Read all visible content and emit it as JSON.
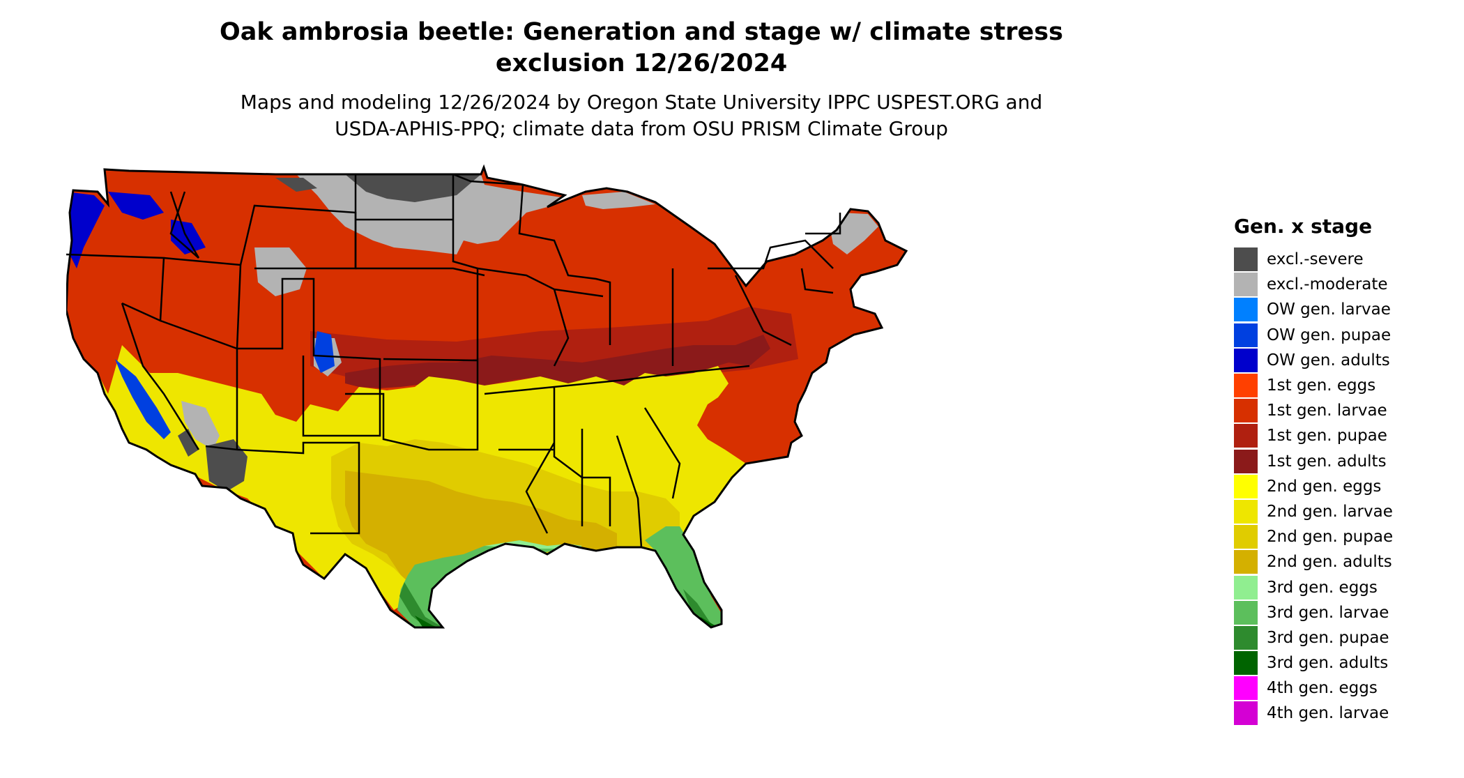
{
  "title_lines": [
    "Oak ambrosia beetle: Generation and stage w/ climate stress",
    "exclusion 12/26/2024"
  ],
  "subtitle_lines": [
    "Maps and modeling 12/26/2024 by Oregon State University IPPC USPEST.ORG and",
    "USDA-APHIS-PPQ; climate data from OSU PRISM Climate Group"
  ],
  "legend": {
    "title": "Gen. x stage",
    "items": [
      {
        "label": "excl.-severe",
        "color": "#4d4d4d"
      },
      {
        "label": "excl.-moderate",
        "color": "#b3b3b3"
      },
      {
        "label": "OW gen. larvae",
        "color": "#0080ff"
      },
      {
        "label": "OW gen. pupae",
        "color": "#0040e0"
      },
      {
        "label": "OW gen. adults",
        "color": "#0000cc"
      },
      {
        "label": "1st gen. eggs",
        "color": "#ff4000"
      },
      {
        "label": "1st gen. larvae",
        "color": "#d73000"
      },
      {
        "label": "1st gen. pupae",
        "color": "#b02010"
      },
      {
        "label": "1st gen. adults",
        "color": "#8b1a1a"
      },
      {
        "label": "2nd gen. eggs",
        "color": "#ffff00"
      },
      {
        "label": "2nd gen. larvae",
        "color": "#eee600"
      },
      {
        "label": "2nd gen. pupae",
        "color": "#e0cc00"
      },
      {
        "label": "2nd gen. adults",
        "color": "#d4b000"
      },
      {
        "label": "3rd gen. eggs",
        "color": "#90ee90"
      },
      {
        "label": "3rd gen. larvae",
        "color": "#5cbf5c"
      },
      {
        "label": "3rd gen. pupae",
        "color": "#2e8b2e"
      },
      {
        "label": "3rd gen. adults",
        "color": "#006400"
      },
      {
        "label": "4th gen. eggs",
        "color": "#ff00ff"
      },
      {
        "label": "4th gen. larvae",
        "color": "#d400d4"
      }
    ]
  }
}
